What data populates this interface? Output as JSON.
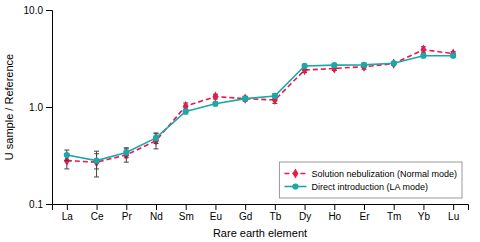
{
  "chart_data": {
    "type": "line",
    "x_label": "Rare earth element",
    "y_label": "U sample / Reference",
    "categories": [
      "La",
      "Ce",
      "Pr",
      "Nd",
      "Sm",
      "Eu",
      "Gd",
      "Tb",
      "Dy",
      "Ho",
      "Er",
      "Tm",
      "Yb",
      "Lu"
    ],
    "series": [
      {
        "name": "Solution nebulization (Normal mode)",
        "color": "#e8194b",
        "marker": "diamond",
        "line_style": "dashed",
        "values": [
          0.28,
          0.27,
          0.32,
          0.45,
          1.02,
          1.28,
          1.22,
          1.18,
          2.4,
          2.5,
          2.6,
          2.8,
          3.9,
          3.55
        ],
        "errors": [
          0.05,
          0.08,
          0.05,
          0.08,
          0.08,
          0.07,
          0.07,
          0.09,
          0.13,
          0.12,
          0.15,
          0.12,
          0.28,
          0.18
        ]
      },
      {
        "name": "Direct introduction (LA mode)",
        "color": "#1aa8a8",
        "marker": "circle",
        "line_style": "solid",
        "values": [
          0.32,
          0.28,
          0.34,
          0.48,
          0.9,
          1.08,
          1.22,
          1.3,
          2.65,
          2.7,
          2.72,
          2.82,
          3.38,
          3.38
        ],
        "errors": [
          0.04,
          0.05,
          0.04,
          0.06,
          0.05,
          0.05,
          0.06,
          0.07,
          0.09,
          0.09,
          0.1,
          0.09,
          0.15,
          0.13
        ]
      }
    ],
    "log": "y",
    "ylim": [
      0.1,
      10.0
    ],
    "yticks": [
      0.1,
      {
        "value": 1.0,
        "label": "1.0"
      },
      {
        "value": 10.0,
        "label": "10.0"
      }
    ],
    "grid": false,
    "legend": "lower right"
  }
}
